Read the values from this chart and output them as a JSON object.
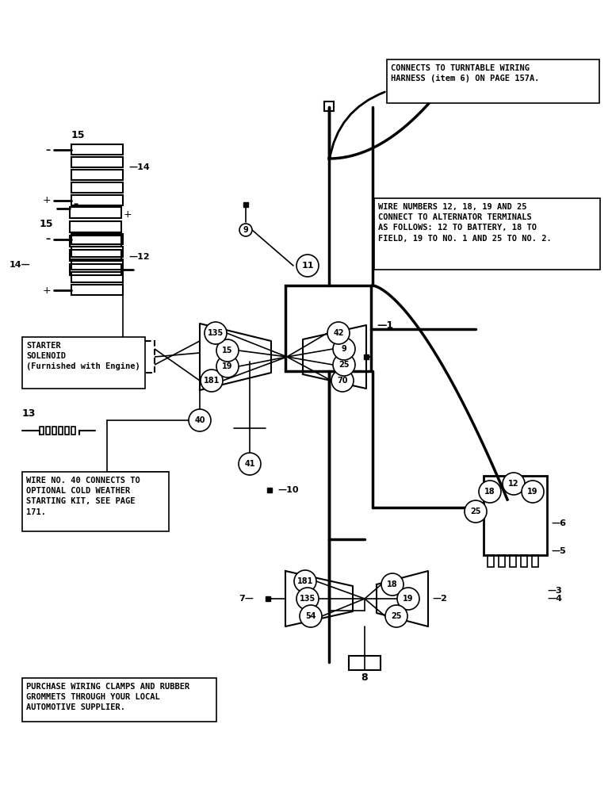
{
  "bg_color": "#ffffff",
  "line_color": "#000000",
  "title": "",
  "annotations": {
    "top_right_box": "CONNECTS TO TURNTABLE WIRING\nHARNESS (item 6) ON PAGE 157A.",
    "mid_right_box": "WIRE NUMBERS 12, 18, 19 AND 25\nCONNECT TO ALTERNATOR TERMINALS\nAS FOLLOWS: 12 TO BATTERY, 18 TO\nFIELD, 19 TO NO. 1 AND 25 TO NO. 2.",
    "starter_box": "STARTER\nSOLENOID\n(Furnished with Engine)",
    "cold_weather_box": "WIRE NO. 40 CONNECTS TO\nOPTIONAL COLD WEATHER\nSTARTING KIT, SEE PAGE\n171.",
    "bottom_left_box": "PURCHASE WIRING CLAMPS AND RUBBER\nGROMMETS THROUGH YOUR LOCAL\nAUTOMOTIVE SUPPLIER."
  },
  "wire_labels_top": [
    "181",
    "19",
    "15",
    "135",
    "70",
    "25",
    "9",
    "42"
  ],
  "wire_labels_bottom": [
    "181",
    "135",
    "54",
    "18",
    "19",
    "25"
  ],
  "part_numbers": {
    "label1": "1",
    "label2": "2",
    "label3": "3",
    "label4": "4",
    "label5": "5",
    "label6": "6",
    "label7": "7",
    "label8": "8",
    "label9": "9",
    "label10": "10",
    "label11": "11",
    "label12": "12",
    "label13": "13",
    "label14": "14",
    "label15": "15"
  }
}
